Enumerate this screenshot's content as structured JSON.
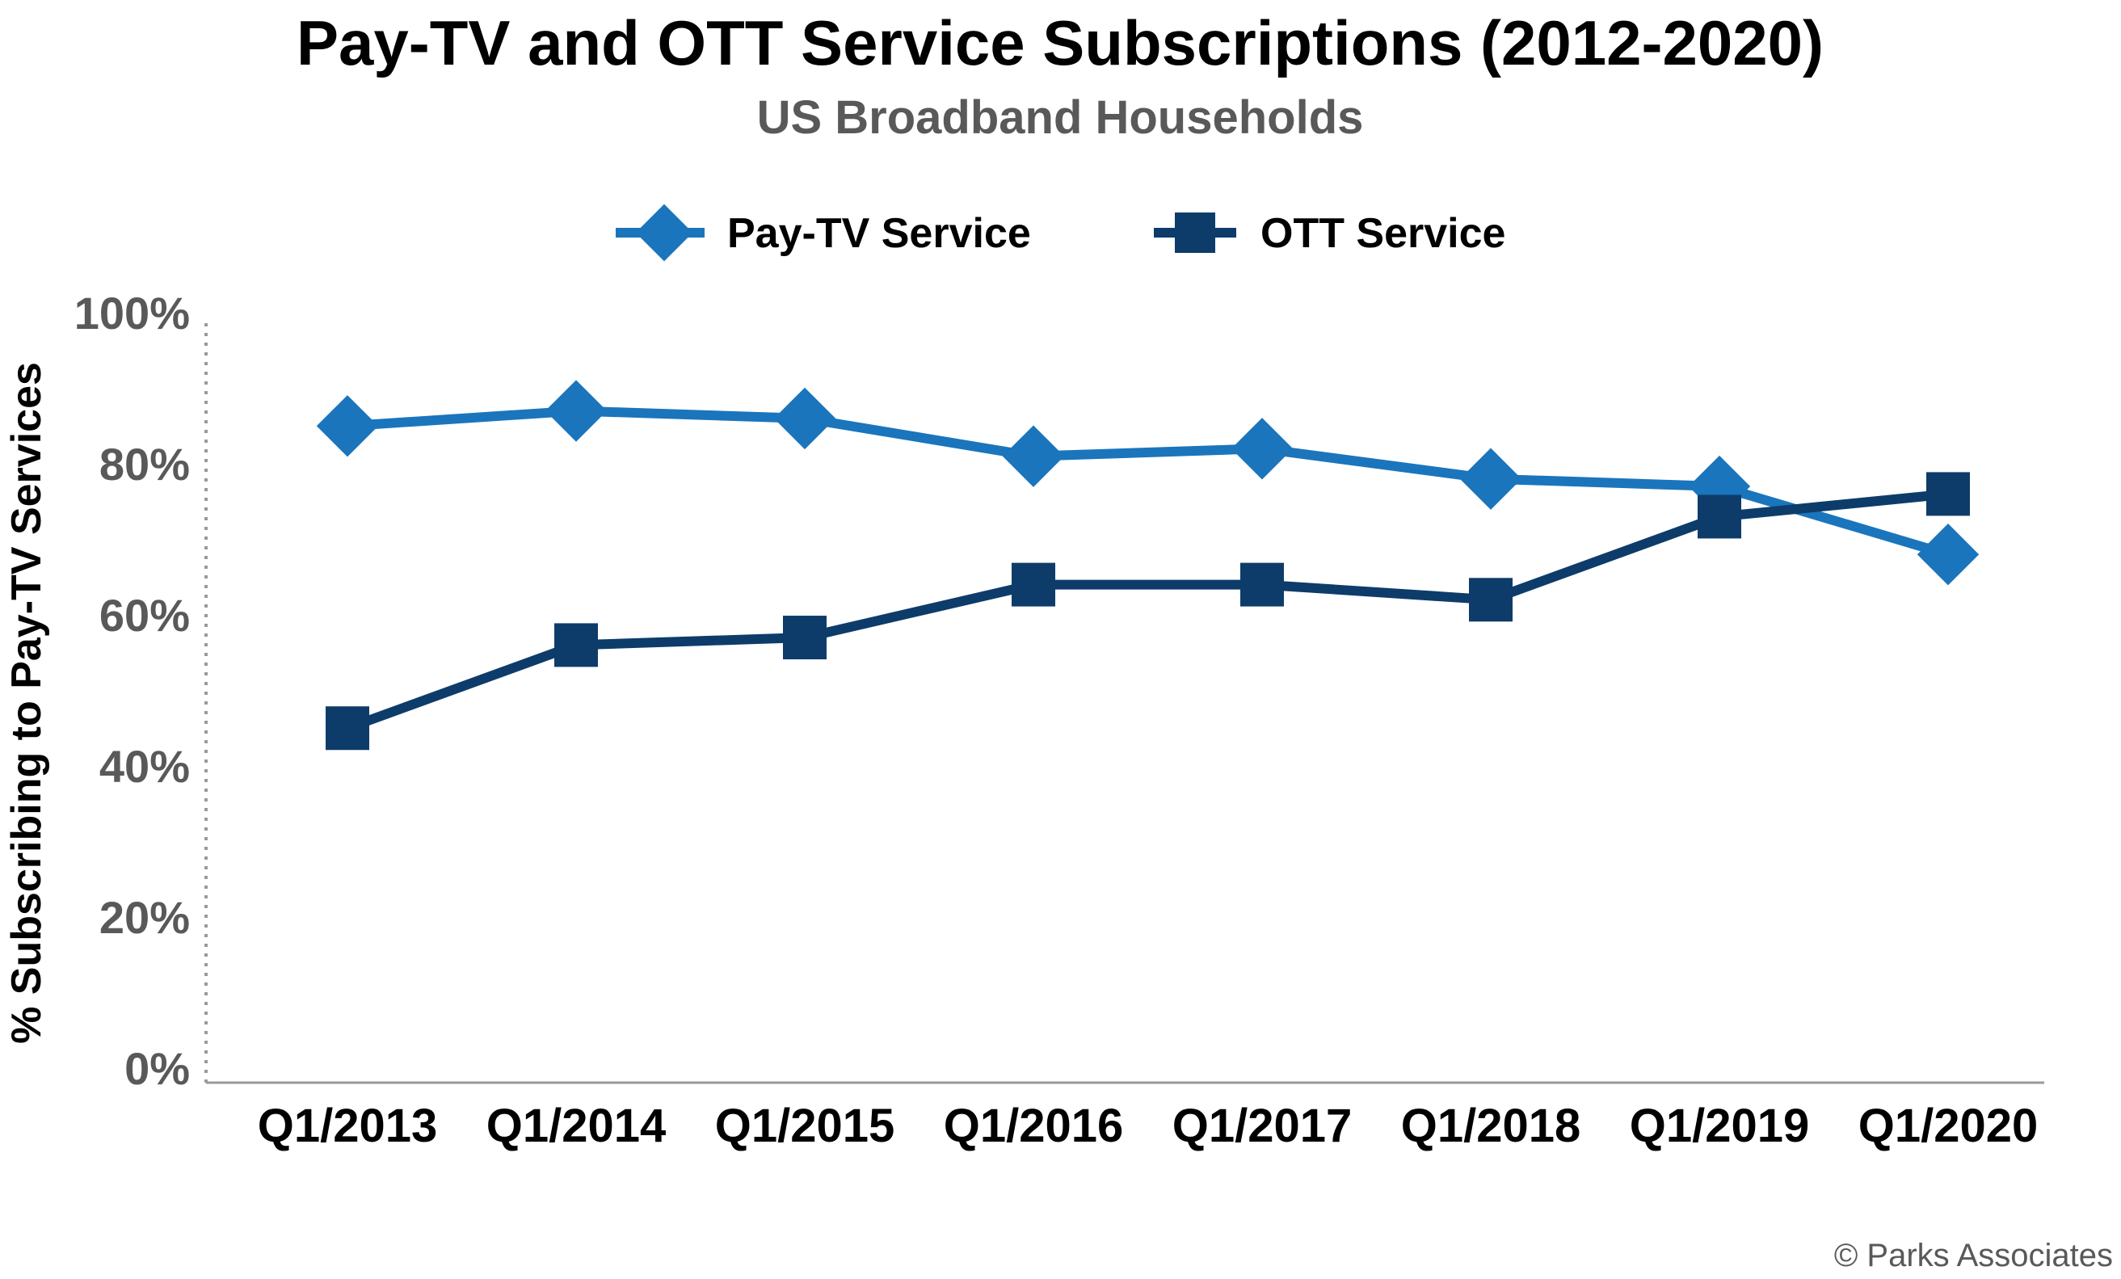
{
  "chart_data": {
    "type": "line",
    "title": "Pay-TV and OTT Service Subscriptions (2012-2020)",
    "subtitle": "US Broadband Households",
    "ylabel": "% Subscribing to Pay-TV Services",
    "xlabel": "",
    "categories": [
      "Q1/2013",
      "Q1/2014",
      "Q1/2015",
      "Q1/2016",
      "Q1/2017",
      "Q1/2018",
      "Q1/2019",
      "Q1/2020"
    ],
    "ylim": [
      0,
      100
    ],
    "yticks": [
      0,
      20,
      40,
      60,
      80,
      100
    ],
    "ytick_labels": [
      "0%",
      "20%",
      "40%",
      "60%",
      "80%",
      "100%"
    ],
    "grid": false,
    "legend_position": "top-center",
    "series": [
      {
        "name": "Pay-TV Service",
        "marker": "diamond",
        "color": "#1a75bc",
        "values": [
          85,
          87,
          86,
          81,
          82,
          78,
          77,
          68
        ]
      },
      {
        "name": "OTT Service",
        "marker": "square",
        "color": "#0d3c6a",
        "values": [
          45,
          56,
          57,
          64,
          64,
          62,
          73,
          76
        ]
      }
    ],
    "credit": "© Parks Associates"
  }
}
